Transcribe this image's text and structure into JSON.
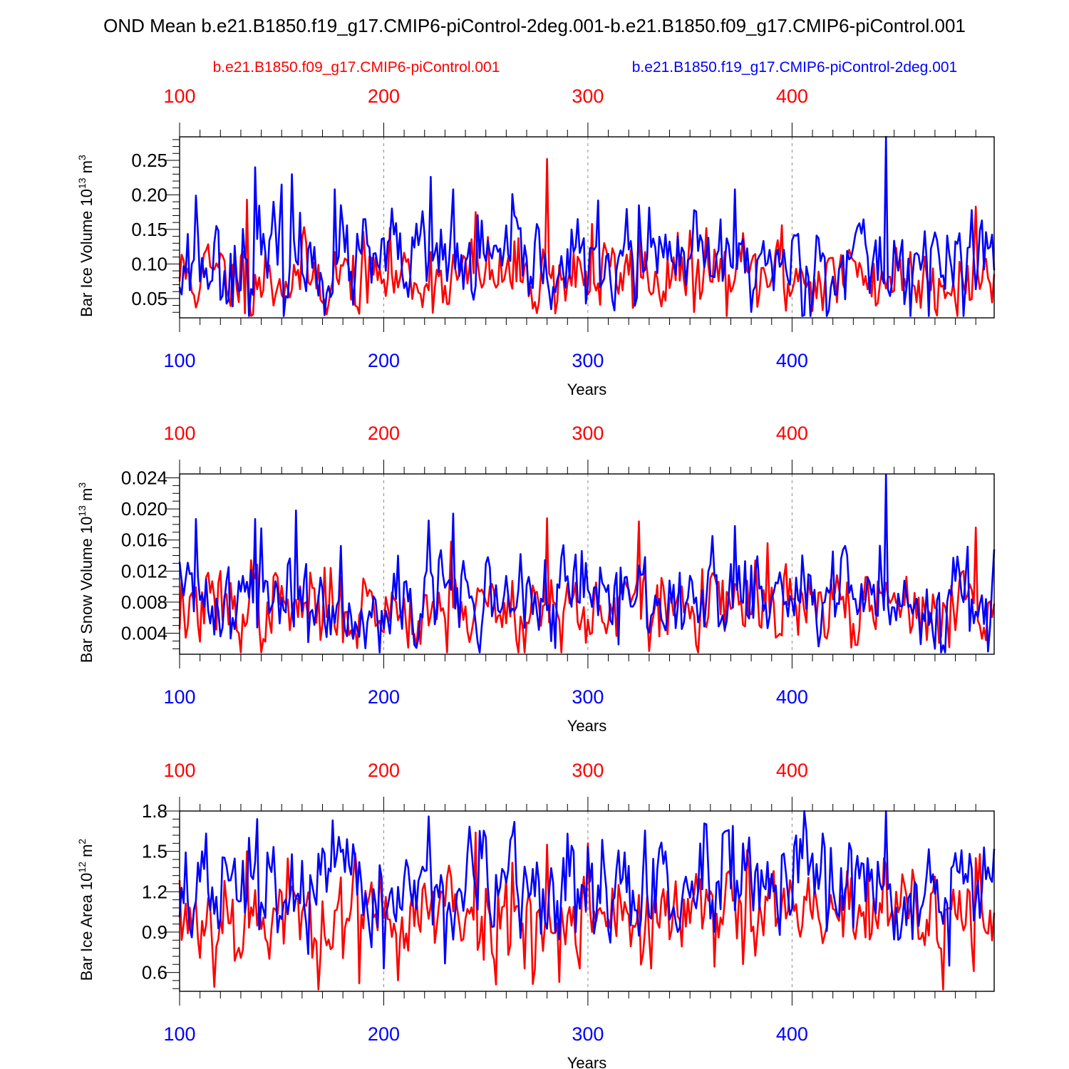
{
  "title": "OND Mean b.e21.B1850.f19_g17.CMIP6-piControl-2deg.001-b.e21.B1850.f09_g17.CMIP6-piControl.001",
  "colors": {
    "red_series": "#ff0000",
    "blue_series": "#0000ff",
    "axes": "#000000",
    "grid": "#888888"
  },
  "legend": {
    "red_label": "b.e21.B1850.f09_g17.CMIP6-piControl.001",
    "blue_label": "b.e21.B1850.f19_g17.CMIP6-piControl-2deg.001"
  },
  "chart_data": [
    {
      "type": "line",
      "ylabel": "Bar Ice Volume 10",
      "ylabel_exp": "13",
      "ylabel_unit": " m",
      "ylabel_unit_exp": "3",
      "xlabel": "Years",
      "xlim": [
        100,
        499
      ],
      "ylim": [
        0.022,
        0.284
      ],
      "yticks": [
        0.05,
        0.1,
        0.15,
        0.2,
        0.25
      ],
      "ytick_labels": [
        "0.05",
        "0.10",
        "0.15",
        "0.20",
        "0.25"
      ],
      "yminor_step": 0.01,
      "xticks": [
        100,
        200,
        300,
        400
      ],
      "xtick_labels": [
        "100",
        "200",
        "300",
        "400"
      ],
      "series": [
        {
          "name": "b.e21.B1850.f09_g17.CMIP6-piControl.001",
          "color": "red",
          "mean": 0.082,
          "sd": 0.028,
          "seed": 11,
          "peaks": [
            [
              133,
              0.193
            ],
            [
              188,
              0.028
            ],
            [
              245,
              0.175
            ],
            [
              280,
              0.252
            ],
            [
              302,
              0.158
            ],
            [
              325,
              0.147
            ],
            [
              358,
              0.152
            ],
            [
              395,
              0.156
            ],
            [
              470,
              0.035
            ],
            [
              490,
              0.183
            ]
          ]
        },
        {
          "name": "b.e21.B1850.f19_g17.CMIP6-piControl-2deg.001",
          "color": "blue",
          "mean": 0.102,
          "sd": 0.034,
          "seed": 23,
          "peaks": [
            [
              108,
              0.199
            ],
            [
              137,
              0.24
            ],
            [
              150,
              0.215
            ],
            [
              155,
              0.23
            ],
            [
              176,
              0.208
            ],
            [
              223,
              0.226
            ],
            [
              234,
              0.208
            ],
            [
              295,
              0.165
            ],
            [
              325,
              0.185
            ],
            [
              372,
              0.208
            ],
            [
              446,
              0.285
            ],
            [
              488,
              0.178
            ],
            [
              493,
              0.163
            ]
          ]
        }
      ]
    },
    {
      "type": "line",
      "ylabel": "Bar Snow Volume 10",
      "ylabel_exp": "13",
      "ylabel_unit": " m",
      "ylabel_unit_exp": "3",
      "xlabel": "Years",
      "xlim": [
        100,
        499
      ],
      "ylim": [
        0.0013,
        0.0245
      ],
      "yticks": [
        0.004,
        0.008,
        0.012,
        0.016,
        0.02,
        0.024
      ],
      "ytick_labels": [
        "0.004",
        "0.008",
        "0.012",
        "0.016",
        "0.020",
        "0.024"
      ],
      "yminor_step": 0.001,
      "xticks": [
        100,
        200,
        300,
        400
      ],
      "xtick_labels": [
        "100",
        "200",
        "300",
        "400"
      ],
      "series": [
        {
          "name": "b.e21.B1850.f09_g17.CMIP6-piControl.001",
          "color": "red",
          "mean": 0.0072,
          "sd": 0.0026,
          "seed": 37,
          "peaks": [
            [
              135,
              0.0134
            ],
            [
              233,
              0.0158
            ],
            [
              280,
              0.0188
            ],
            [
              287,
              0.0015
            ],
            [
              325,
              0.0184
            ],
            [
              388,
              0.0156
            ],
            [
              490,
              0.0176
            ],
            [
              477,
              0.0022
            ]
          ]
        },
        {
          "name": "b.e21.B1850.f19_g17.CMIP6-piControl-2deg.001",
          "color": "blue",
          "mean": 0.0085,
          "sd": 0.003,
          "seed": 41,
          "peaks": [
            [
              108,
              0.0187
            ],
            [
              137,
              0.0187
            ],
            [
              140,
              0.0175
            ],
            [
              157,
              0.0198
            ],
            [
              222,
              0.0185
            ],
            [
              234,
              0.0194
            ],
            [
              287,
              0.0138
            ],
            [
              372,
              0.0178
            ],
            [
              446,
              0.0244
            ],
            [
              475,
              0.0015
            ],
            [
              499,
              0.0148
            ]
          ]
        }
      ]
    },
    {
      "type": "line",
      "ylabel": "Bar Ice Area 10",
      "ylabel_exp": "12",
      "ylabel_unit": " m",
      "ylabel_unit_exp": "2",
      "xlabel": "Years",
      "xlim": [
        100,
        499
      ],
      "ylim": [
        0.46,
        1.8
      ],
      "yticks": [
        0.6,
        0.9,
        1.2,
        1.5,
        1.8
      ],
      "ytick_labels": [
        "0.6",
        "0.9",
        "1.2",
        "1.5",
        "1.8"
      ],
      "yminor_step": 0.06,
      "xticks": [
        100,
        200,
        300,
        400
      ],
      "xtick_labels": [
        "100",
        "200",
        "300",
        "400"
      ],
      "series": [
        {
          "name": "b.e21.B1850.f09_g17.CMIP6-piControl.001",
          "color": "red",
          "mean": 1.02,
          "sd": 0.2,
          "seed": 53,
          "peaks": [
            [
              133,
              1.5
            ],
            [
              188,
              0.52
            ],
            [
              245,
              1.64
            ],
            [
              280,
              1.55
            ],
            [
              300,
              1.56
            ],
            [
              296,
              0.63
            ],
            [
              474,
              0.46
            ],
            [
              490,
              1.45
            ]
          ]
        },
        {
          "name": "b.e21.B1850.f19_g17.CMIP6-piControl-2deg.001",
          "color": "blue",
          "mean": 1.2,
          "sd": 0.2,
          "seed": 67,
          "peaks": [
            [
              138,
              1.74
            ],
            [
              222,
              1.76
            ],
            [
              200,
              0.63
            ],
            [
              371,
              1.69
            ],
            [
              446,
              1.8
            ],
            [
              477,
              0.65
            ],
            [
              494,
              1.53
            ]
          ]
        }
      ]
    }
  ]
}
